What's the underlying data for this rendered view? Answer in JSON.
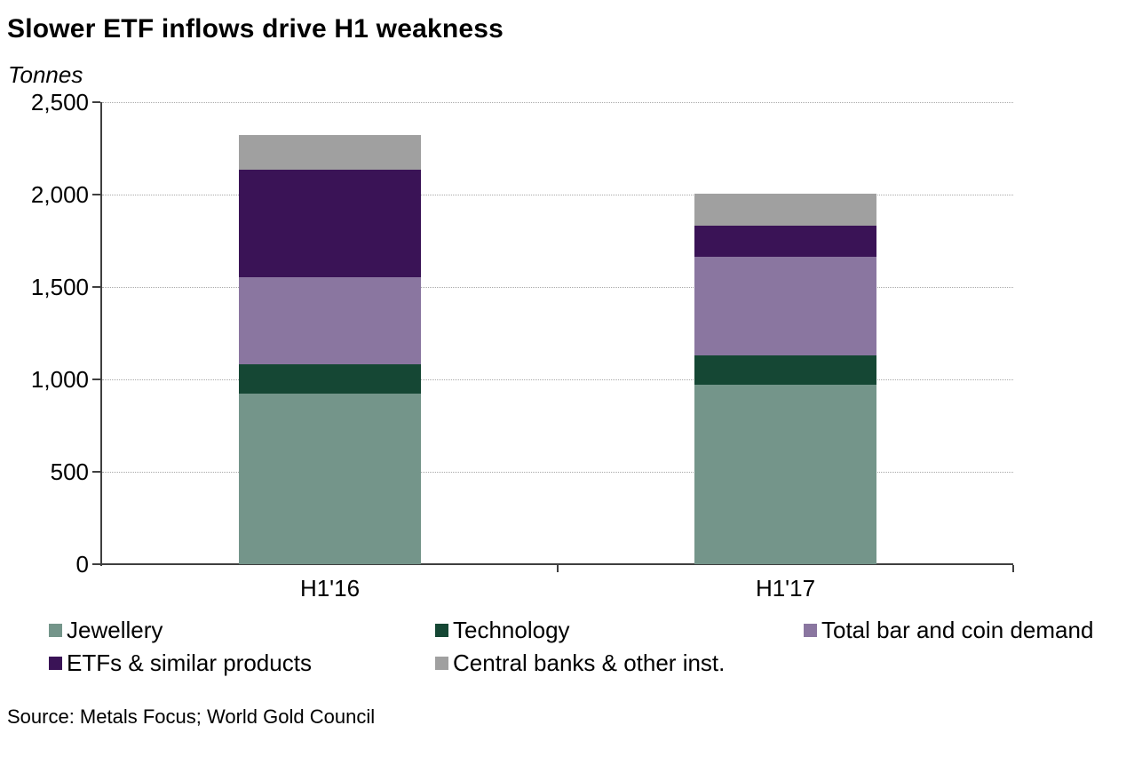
{
  "chart_data": {
    "type": "bar",
    "stacked": true,
    "title": "Slower ETF inflows drive H1 weakness",
    "unit_label": "Tonnes",
    "categories": [
      "H1'16",
      "H1'17"
    ],
    "series": [
      {
        "name": "Jewellery",
        "color": "#74958a",
        "values": [
          925,
          970
        ]
      },
      {
        "name": "Technology",
        "color": "#154734",
        "values": [
          155,
          160
        ]
      },
      {
        "name": "Total bar and coin demand",
        "color": "#8a76a0",
        "values": [
          475,
          535
        ]
      },
      {
        "name": "ETFs & similar products",
        "color": "#3a1356",
        "values": [
          580,
          165
        ]
      },
      {
        "name": "Central banks & other inst.",
        "color": "#a0a0a0",
        "values": [
          185,
          175
        ]
      }
    ],
    "ylim": [
      0,
      2500
    ],
    "ytick_interval": 500,
    "ytick_labels": [
      "0",
      "500",
      "1,000",
      "1,500",
      "2,000",
      "2,500"
    ],
    "grid": "horizontal-dotted",
    "legend_position": "bottom-left-two-rows",
    "bar_width_fraction": 0.4
  },
  "source": "Source: Metals Focus; World Gold Council",
  "colors": {
    "axis": "#3f3f3f",
    "gridline": "#a9a9a9",
    "text": "#000000",
    "background": "#ffffff"
  }
}
